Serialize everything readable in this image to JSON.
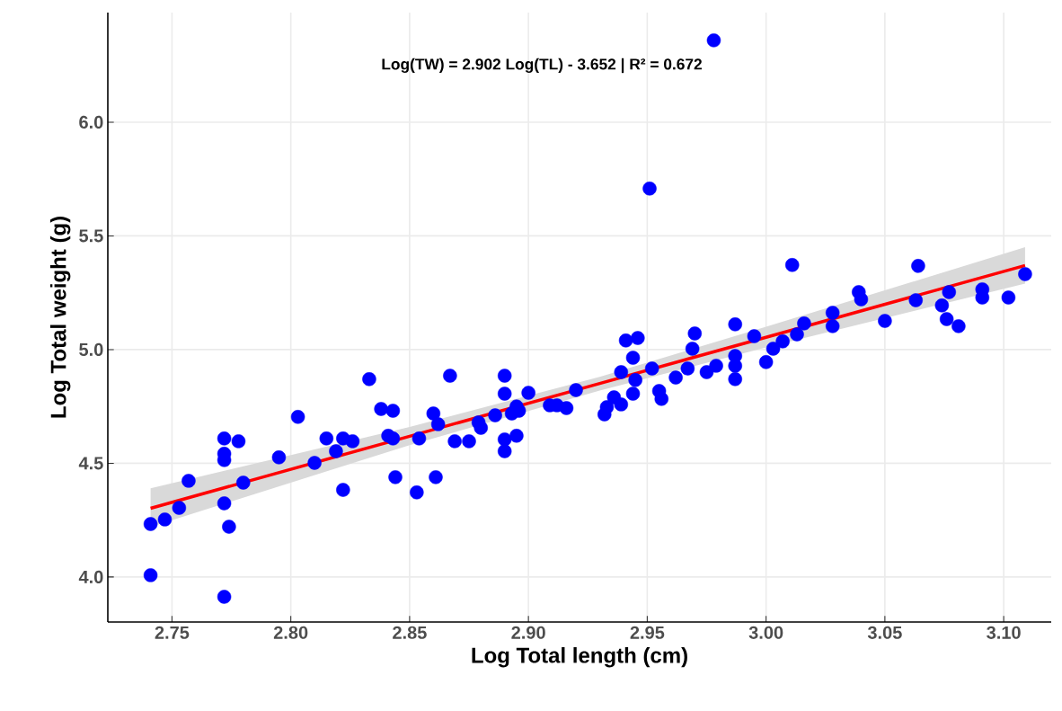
{
  "chart_data": {
    "type": "scatter",
    "xlabel": "Log Total length (cm)",
    "ylabel": "Log Total weight (g)",
    "annotations": [
      "Log(TW) = 2.902 Log(TL) - 3.652   |   R² = 0.672"
    ],
    "xlim": [
      2.723,
      3.12
    ],
    "ylim": [
      3.802,
      6.482
    ],
    "xticks": [
      2.75,
      {
        "value": 2.8,
        "label": "2.80"
      },
      2.85,
      {
        "value": 2.9,
        "label": "2.90"
      },
      2.95,
      {
        "value": 3.0,
        "label": "3.00"
      },
      3.05,
      {
        "value": 3.1,
        "label": "3.10"
      }
    ],
    "yticks": [
      {
        "value": 4.0,
        "label": "4.0"
      },
      4.5,
      {
        "value": 5.0,
        "label": "5.0"
      },
      5.5,
      {
        "value": 6.0,
        "label": "6.0"
      }
    ],
    "grid": true,
    "series": [
      {
        "marker": "circle",
        "color": "#0000ff",
        "x": [
          2.741,
          2.741,
          2.747,
          2.753,
          2.757,
          2.772,
          2.772,
          2.772,
          2.772,
          2.774,
          2.772,
          2.778,
          2.78,
          2.795,
          2.803,
          2.81,
          2.815,
          2.819,
          2.822,
          2.822,
          2.826,
          2.833,
          2.838,
          2.841,
          2.843,
          2.843,
          2.844,
          2.853,
          2.854,
          2.86,
          2.861,
          2.862,
          2.867,
          2.869,
          2.875,
          2.879,
          2.88,
          2.886,
          2.89,
          2.89,
          2.89,
          2.89,
          2.895,
          2.893,
          2.895,
          2.896,
          2.9,
          2.909,
          2.912,
          2.916,
          2.92,
          2.932,
          2.933,
          2.936,
          2.939,
          2.939,
          2.941,
          2.944,
          2.945,
          2.944,
          2.946,
          2.951,
          2.952,
          2.955,
          2.956,
          2.962,
          2.967,
          2.969,
          2.97,
          2.975,
          2.978,
          2.979,
          2.987,
          2.987,
          2.987,
          2.987,
          2.995,
          3.0,
          3.003,
          3.007,
          3.011,
          3.013,
          3.016,
          3.028,
          3.028,
          3.039,
          3.04,
          3.05,
          3.063,
          3.064,
          3.074,
          3.077,
          3.076,
          3.081,
          3.091,
          3.091,
          3.102,
          3.109
        ],
        "values": [
          4.233,
          4.008,
          4.253,
          4.304,
          4.423,
          4.324,
          4.514,
          4.542,
          4.609,
          4.221,
          3.913,
          4.597,
          4.415,
          4.526,
          4.704,
          4.502,
          4.609,
          4.553,
          4.609,
          4.383,
          4.597,
          4.87,
          4.739,
          4.621,
          4.731,
          4.609,
          4.439,
          4.372,
          4.609,
          4.719,
          4.439,
          4.672,
          4.885,
          4.597,
          4.597,
          4.68,
          4.656,
          4.711,
          4.885,
          4.806,
          4.605,
          4.553,
          4.621,
          4.719,
          4.75,
          4.731,
          4.81,
          4.755,
          4.755,
          4.743,
          4.822,
          4.715,
          4.747,
          4.79,
          4.759,
          4.901,
          5.04,
          4.806,
          4.866,
          4.964,
          5.051,
          5.708,
          4.917,
          4.818,
          4.783,
          4.877,
          4.917,
          5.004,
          5.071,
          4.901,
          6.36,
          4.929,
          4.87,
          4.929,
          4.972,
          5.111,
          5.059,
          4.945,
          5.004,
          5.036,
          5.372,
          5.067,
          5.115,
          5.162,
          5.103,
          5.253,
          5.221,
          5.126,
          5.217,
          5.368,
          5.194,
          5.253,
          5.134,
          5.103,
          5.229,
          5.265,
          5.229,
          5.332
        ]
      },
      {
        "type": "line",
        "marker": "none",
        "color": "#ff0000",
        "x": [
          2.741,
          2.85,
          2.93,
          3.0,
          3.109
        ],
        "values": [
          4.302,
          4.619,
          4.851,
          5.054,
          5.37
        ],
        "lower": [
          4.22,
          4.58,
          4.82,
          5.01,
          5.29
        ],
        "upper": [
          4.39,
          4.66,
          4.88,
          5.1,
          5.45
        ]
      }
    ]
  }
}
